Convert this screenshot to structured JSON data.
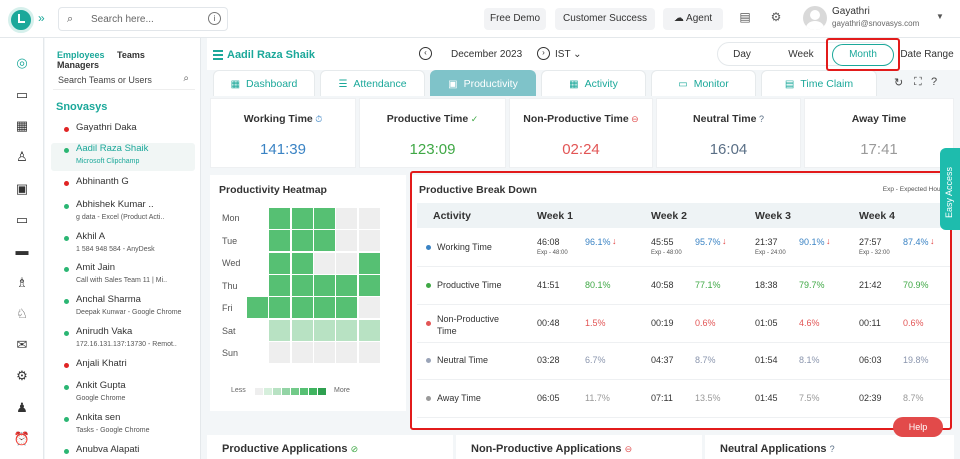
{
  "topbar": {
    "search_placeholder": "Search here...",
    "free_demo": "Free Demo",
    "customer_success": "Customer Success",
    "agent": "Agent",
    "user_name": "Gayathri",
    "user_email": "gayathri@snovasys.com"
  },
  "employee_panel": {
    "tabs": [
      "Employees",
      "Teams",
      "Managers"
    ],
    "search_placeholder": "Search Teams or Users",
    "org": "Snovasys",
    "employees": [
      {
        "name": "Gayathri Daka",
        "sub": "",
        "status": "#e02424"
      },
      {
        "name": "Aadil Raza Shaik",
        "sub": "Microsoft Clipchamp",
        "status": "#2bb673",
        "selected": true
      },
      {
        "name": "Abhinanth G",
        "sub": "",
        "status": "#e02424"
      },
      {
        "name": "Abhishek Kumar ..",
        "sub": "g data - Excel (Product Acti..",
        "status": "#2bb673"
      },
      {
        "name": "Akhil A",
        "sub": "1 584 948 584 - AnyDesk",
        "status": "#2bb673"
      },
      {
        "name": "Amit Jain",
        "sub": "Call with Sales Team 11 | Mi..",
        "status": "#2bb673"
      },
      {
        "name": "Anchal Sharma",
        "sub": "Deepak Kunwar - Google Chrome",
        "status": "#2bb673"
      },
      {
        "name": "Anirudh Vaka",
        "sub": "172.16.131.137:13730 - Remot..",
        "status": "#2bb673"
      },
      {
        "name": "Anjali Khatri",
        "sub": "",
        "status": "#e02424"
      },
      {
        "name": "Ankit Gupta",
        "sub": "Google Chrome",
        "status": "#2bb673"
      },
      {
        "name": "Ankita sen",
        "sub": "Tasks - Google Chrome",
        "status": "#2bb673"
      },
      {
        "name": "Anubva Alapati",
        "sub": "",
        "status": "#2bb673"
      }
    ]
  },
  "header": {
    "employee_name": "Aadil Raza Shaik",
    "month": "December 2023",
    "timezone": "IST",
    "periods": [
      "Day",
      "Week",
      "Month",
      "Date Range"
    ]
  },
  "tabs": [
    {
      "label": "Dashboard",
      "icon": "dashboard-icon"
    },
    {
      "label": "Attendance",
      "icon": "attendance-icon"
    },
    {
      "label": "Productivity",
      "icon": "productivity-icon",
      "active": true
    },
    {
      "label": "Activity",
      "icon": "activity-icon"
    },
    {
      "label": "Monitor",
      "icon": "monitor-icon"
    },
    {
      "label": "Time Claim",
      "icon": "time-claim-icon"
    }
  ],
  "stats": [
    {
      "label": "Working Time",
      "value": "141:39",
      "color": "#3a83c4"
    },
    {
      "label": "Productive Time",
      "value": "123:09",
      "color": "#3fa845"
    },
    {
      "label": "Non-Productive Time",
      "value": "02:24",
      "color": "#e25555"
    },
    {
      "label": "Neutral Time",
      "value": "16:04",
      "color": "#5a6f86"
    },
    {
      "label": "Away Time",
      "value": "17:41",
      "color": "#9a9a9a"
    }
  ],
  "heatmap": {
    "title": "Productivity Heatmap",
    "days": [
      "Mon",
      "Tue",
      "Wed",
      "Thu",
      "Fri",
      "Sat",
      "Sun"
    ],
    "legend_less": "Less",
    "legend_more": "More",
    "levels": [
      [
        0,
        3,
        3,
        3,
        1,
        1
      ],
      [
        0,
        3,
        3,
        3,
        1,
        1
      ],
      [
        0,
        3,
        3,
        1,
        1,
        3
      ],
      [
        0,
        3,
        3,
        3,
        3,
        3
      ],
      [
        3,
        3,
        3,
        3,
        3,
        1
      ],
      [
        0,
        2,
        2,
        2,
        2,
        2
      ],
      [
        0,
        1,
        1,
        1,
        1,
        1
      ]
    ],
    "palette": [
      "#ffffff",
      "#eeeeee",
      "#b8e2c3",
      "#56c073"
    ]
  },
  "breakdown": {
    "title": "Productive Break Down",
    "note": "Exp - Expected Hours",
    "columns": [
      "Activity",
      "Week 1",
      "Week 2",
      "Week 3",
      "Week 4"
    ],
    "rows": [
      {
        "activity": "Working Time",
        "color": "#3a83c4",
        "pct_color": "#3a83c4",
        "cells": [
          {
            "time": "46:08",
            "pct": "96.1%",
            "exp": "Exp - 48:00",
            "down": true
          },
          {
            "time": "45:55",
            "pct": "95.7%",
            "exp": "Exp - 48:00",
            "down": true
          },
          {
            "time": "21:37",
            "pct": "90.1%",
            "exp": "Exp - 24:00",
            "down": true
          },
          {
            "time": "27:57",
            "pct": "87.4%",
            "exp": "Exp - 32:00",
            "down": true
          }
        ]
      },
      {
        "activity": "Productive Time",
        "color": "#3fa845",
        "pct_color": "#3fa845",
        "cells": [
          {
            "time": "41:51",
            "pct": "80.1%"
          },
          {
            "time": "40:58",
            "pct": "77.1%"
          },
          {
            "time": "18:38",
            "pct": "79.7%"
          },
          {
            "time": "21:42",
            "pct": "70.9%"
          }
        ]
      },
      {
        "activity": "Non-Productive Time",
        "color": "#e25555",
        "pct_color": "#e25555",
        "cells": [
          {
            "time": "00:48",
            "pct": "1.5%"
          },
          {
            "time": "00:19",
            "pct": "0.6%"
          },
          {
            "time": "01:05",
            "pct": "4.6%"
          },
          {
            "time": "00:11",
            "pct": "0.6%"
          }
        ]
      },
      {
        "activity": "Neutral Time",
        "color": "#9aa4b8",
        "pct_color": "#8a95ad",
        "cells": [
          {
            "time": "03:28",
            "pct": "6.7%"
          },
          {
            "time": "04:37",
            "pct": "8.7%"
          },
          {
            "time": "01:54",
            "pct": "8.1%"
          },
          {
            "time": "06:03",
            "pct": "19.8%"
          }
        ]
      },
      {
        "activity": "Away Time",
        "color": "#9a9a9a",
        "pct_color": "#999999",
        "cells": [
          {
            "time": "06:05",
            "pct": "11.7%"
          },
          {
            "time": "07:11",
            "pct": "13.5%"
          },
          {
            "time": "01:45",
            "pct": "7.5%"
          },
          {
            "time": "02:39",
            "pct": "8.7%"
          }
        ]
      }
    ]
  },
  "bottom_cards": [
    "Productive Applications",
    "Non-Productive Applications",
    "Neutral Applications"
  ],
  "easy_access": "Easy Access",
  "help": "Help"
}
